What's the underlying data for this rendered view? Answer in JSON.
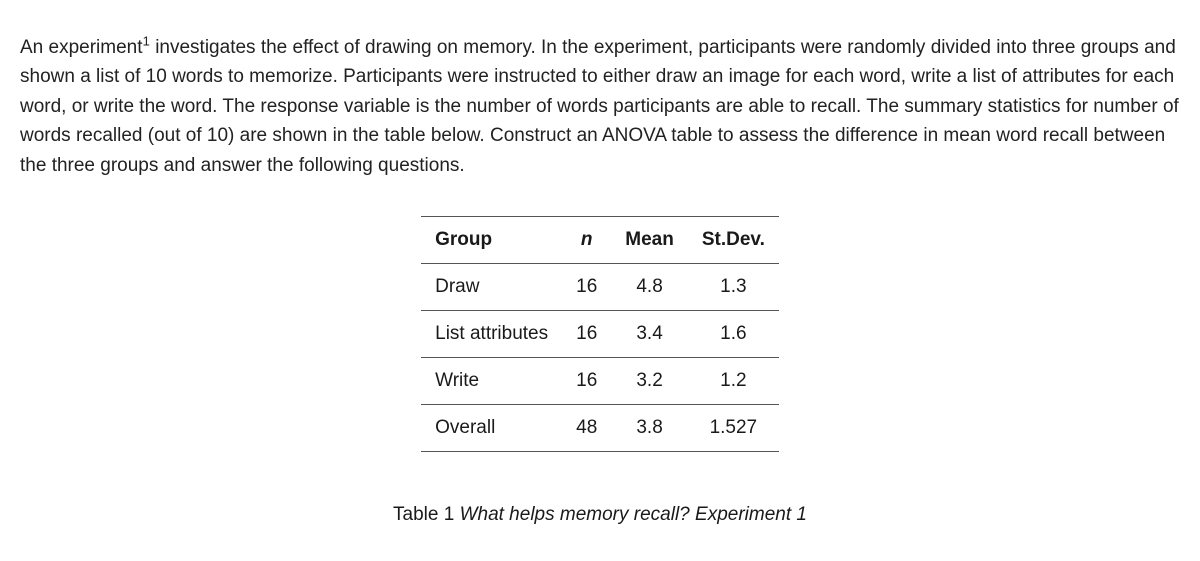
{
  "prompt": {
    "pre": "An experiment",
    "sup": "1",
    "post": " investigates the effect of drawing on memory. In the experiment, participants were randomly divided into three groups and shown a list of 10 words to memorize. Participants were instructed to either draw an image for each word, write a list of attributes for each word, or write the word. The response variable is the number of words participants are able to recall. The summary statistics for number of words recalled (out of 10) are shown in the table below. Construct an ANOVA table to assess the difference in mean word recall between the three groups and answer the following questions."
  },
  "table": {
    "columns": [
      "Group",
      "n",
      "Mean",
      "St.Dev."
    ],
    "rows": [
      {
        "group": "Draw",
        "n": "16",
        "mean": "4.8",
        "sd": "1.3"
      },
      {
        "group": "List attributes",
        "n": "16",
        "mean": "3.4",
        "sd": "1.6"
      },
      {
        "group": "Write",
        "n": "16",
        "mean": "3.2",
        "sd": "1.2"
      },
      {
        "group": "Overall",
        "n": "48",
        "mean": "3.8",
        "sd": "1.527"
      }
    ]
  },
  "caption": {
    "label": "Table 1 ",
    "text": "What helps memory recall? Experiment 1"
  }
}
